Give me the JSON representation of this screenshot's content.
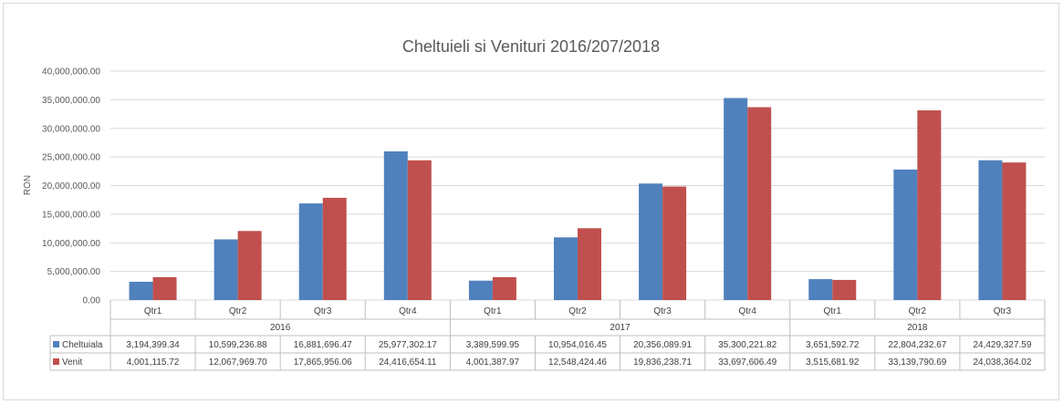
{
  "chart_data": {
    "type": "bar",
    "title": "Cheltuieli si Venituri 2016/207/2018",
    "ylabel": "RON",
    "xlabel": "",
    "ylim": [
      0,
      40000000
    ],
    "y_ticks": [
      "0.00",
      "5,000,000.00",
      "10,000,000.00",
      "15,000,000.00",
      "20,000,000.00",
      "25,000,000.00",
      "30,000,000.00",
      "35,000,000.00",
      "40,000,000.00"
    ],
    "grid": "horizontal",
    "legend_placement": "data-table",
    "groups": [
      {
        "label": "2016",
        "span": 4
      },
      {
        "label": "2017",
        "span": 4
      },
      {
        "label": "2018",
        "span": 3
      }
    ],
    "categories": [
      "Qtr1",
      "Qtr2",
      "Qtr3",
      "Qtr4",
      "Qtr1",
      "Qtr2",
      "Qtr3",
      "Qtr4",
      "Qtr1",
      "Qtr2",
      "Qtr3"
    ],
    "series": [
      {
        "name": "Cheltuiala",
        "color": "#4f81bd",
        "values": [
          3194399.34,
          10599236.88,
          16881696.47,
          25977302.17,
          3389599.95,
          10954016.45,
          20356089.91,
          35300221.82,
          3651592.72,
          22804232.67,
          24429327.59
        ],
        "labels": [
          "3,194,399.34",
          "10,599,236.88",
          "16,881,696.47",
          "25,977,302.17",
          "3,389,599.95",
          "10,954,016.45",
          "20,356,089.91",
          "35,300,221.82",
          "3,651,592.72",
          "22,804,232.67",
          "24,429,327.59"
        ]
      },
      {
        "name": "Venit",
        "color": "#c0504d",
        "values": [
          4001115.72,
          12067969.7,
          17865956.06,
          24416654.11,
          4001387.97,
          12548424.46,
          19836238.71,
          33697606.49,
          3515681.92,
          33139790.69,
          24038364.02
        ],
        "labels": [
          "4,001,115.72",
          "12,067,969.70",
          "17,865,956.06",
          "24,416,654.11",
          "4,001,387.97",
          "12,548,424.46",
          "19,836,238.71",
          "33,697,606.49",
          "3,515,681.92",
          "33,139,790.69",
          "24,038,364.02"
        ]
      }
    ]
  },
  "colors": {
    "grid": "#d9d9d9",
    "text": "#595959",
    "table_border": "#bfbfbf"
  }
}
